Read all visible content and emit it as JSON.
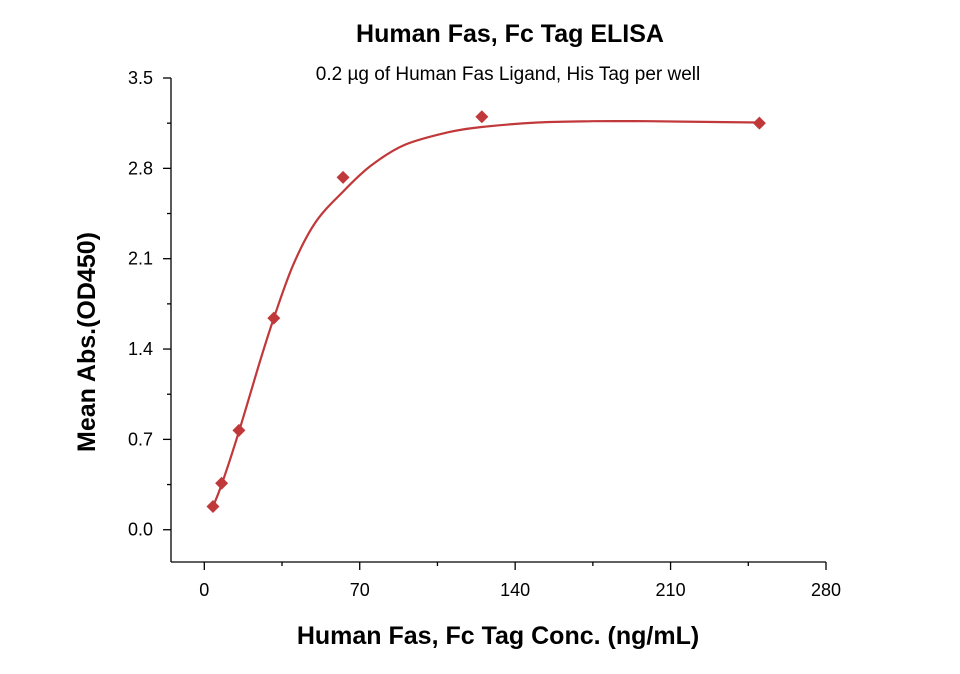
{
  "chart_data": {
    "type": "scatter",
    "title": "Human Fas, Fc Tag ELISA",
    "subtitle": "0.2 µg of Human Fas Ligand, His Tag per well",
    "xlabel": "Human Fas, Fc Tag Conc. (ng/mL)",
    "ylabel": "Mean Abs.(OD450)",
    "xlim": [
      -15,
      280
    ],
    "ylim": [
      -0.25,
      3.5
    ],
    "x_ticks": [
      0,
      70,
      140,
      210,
      280
    ],
    "x_tick_labels": [
      "0",
      "70",
      "140",
      "210",
      "280"
    ],
    "y_ticks": [
      0.0,
      0.7,
      1.4,
      2.1,
      2.8,
      3.5
    ],
    "y_tick_labels": [
      "0.0",
      "0.7",
      "1.4",
      "2.1",
      "2.8",
      "3.5"
    ],
    "series": [
      {
        "marker": "diamond",
        "color": "#C0383A",
        "x": [
          3.9,
          7.8,
          15.6,
          31.3,
          62.5,
          125,
          250
        ],
        "y": [
          0.18,
          0.36,
          0.77,
          1.64,
          2.73,
          3.2,
          3.15
        ]
      }
    ],
    "fit_curve": {
      "color": "#C0383A",
      "x": [
        3.9,
        7.8,
        15.6,
        25,
        31.3,
        40,
        50,
        62.5,
        75,
        90,
        110,
        125,
        150,
        175,
        200,
        225,
        250
      ],
      "y": [
        0.18,
        0.35,
        0.76,
        1.3,
        1.64,
        2.05,
        2.38,
        2.62,
        2.82,
        2.98,
        3.08,
        3.12,
        3.155,
        3.165,
        3.165,
        3.16,
        3.155
      ]
    }
  }
}
